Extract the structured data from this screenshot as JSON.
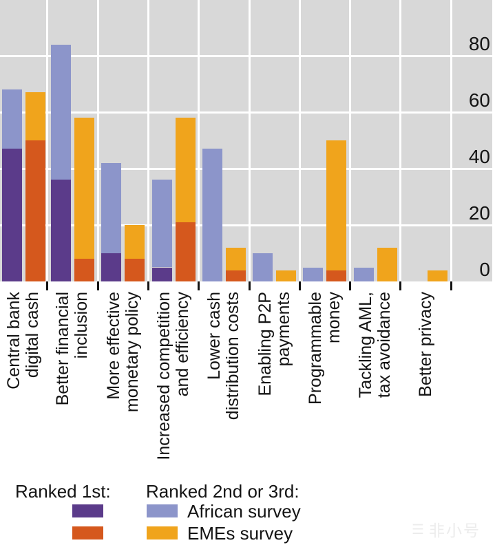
{
  "watermark": {
    "logo": "☰",
    "text": "非小号"
  },
  "colors": {
    "plot_background": "#d8d8d8",
    "gridline": "#ffffff",
    "african_ranked_1st": "#5b3b8a",
    "african_ranked_2nd_3rd": "#8c95ca",
    "emes_ranked_1st": "#d5581d",
    "emes_ranked_2nd_3rd": "#f0a41c",
    "axis_text": "#141414"
  },
  "legend": {
    "ranked_1st_label": "Ranked 1st:",
    "ranked_2nd_3rd_label": "Ranked 2nd or 3rd:",
    "african_survey_label": "African survey",
    "emes_survey_label": "EMEs survey"
  },
  "chart_data": {
    "type": "bar",
    "stacked": true,
    "grid": true,
    "legend_position": "bottom",
    "ylim": [
      0,
      100
    ],
    "yticks": [
      0,
      20,
      40,
      60,
      80
    ],
    "categories": [
      [
        "Central bank",
        "digital cash"
      ],
      [
        "Better financial",
        "inclusion"
      ],
      [
        "More effective",
        "monetary policy"
      ],
      [
        "Increased competition",
        "and efficiency"
      ],
      [
        "Lower cash",
        "distribution costs"
      ],
      [
        "Enabling P2P",
        "payments"
      ],
      [
        "Programmable",
        "money"
      ],
      [
        "Tackling AML,",
        "tax avoidance"
      ],
      [
        "Better privacy"
      ]
    ],
    "series": [
      {
        "name": "African survey — Ranked 1st",
        "bar": "african",
        "stack_order": 0,
        "color_key": "african_ranked_1st",
        "values": [
          47,
          36,
          10,
          5,
          0,
          0,
          0,
          0,
          0
        ]
      },
      {
        "name": "African survey — Ranked 2nd or 3rd",
        "bar": "african",
        "stack_order": 1,
        "color_key": "african_ranked_2nd_3rd",
        "values": [
          21,
          48,
          32,
          31,
          47,
          10,
          5,
          5,
          0
        ]
      },
      {
        "name": "EMEs survey — Ranked 1st",
        "bar": "emes",
        "stack_order": 0,
        "color_key": "emes_ranked_1st",
        "values": [
          50,
          8,
          8,
          21,
          4,
          0,
          4,
          0,
          0
        ]
      },
      {
        "name": "EMEs survey — Ranked 2nd or 3rd",
        "bar": "emes",
        "stack_order": 1,
        "color_key": "emes_ranked_2nd_3rd",
        "values": [
          17,
          50,
          12,
          37,
          8,
          4,
          46,
          12,
          4
        ]
      }
    ]
  }
}
